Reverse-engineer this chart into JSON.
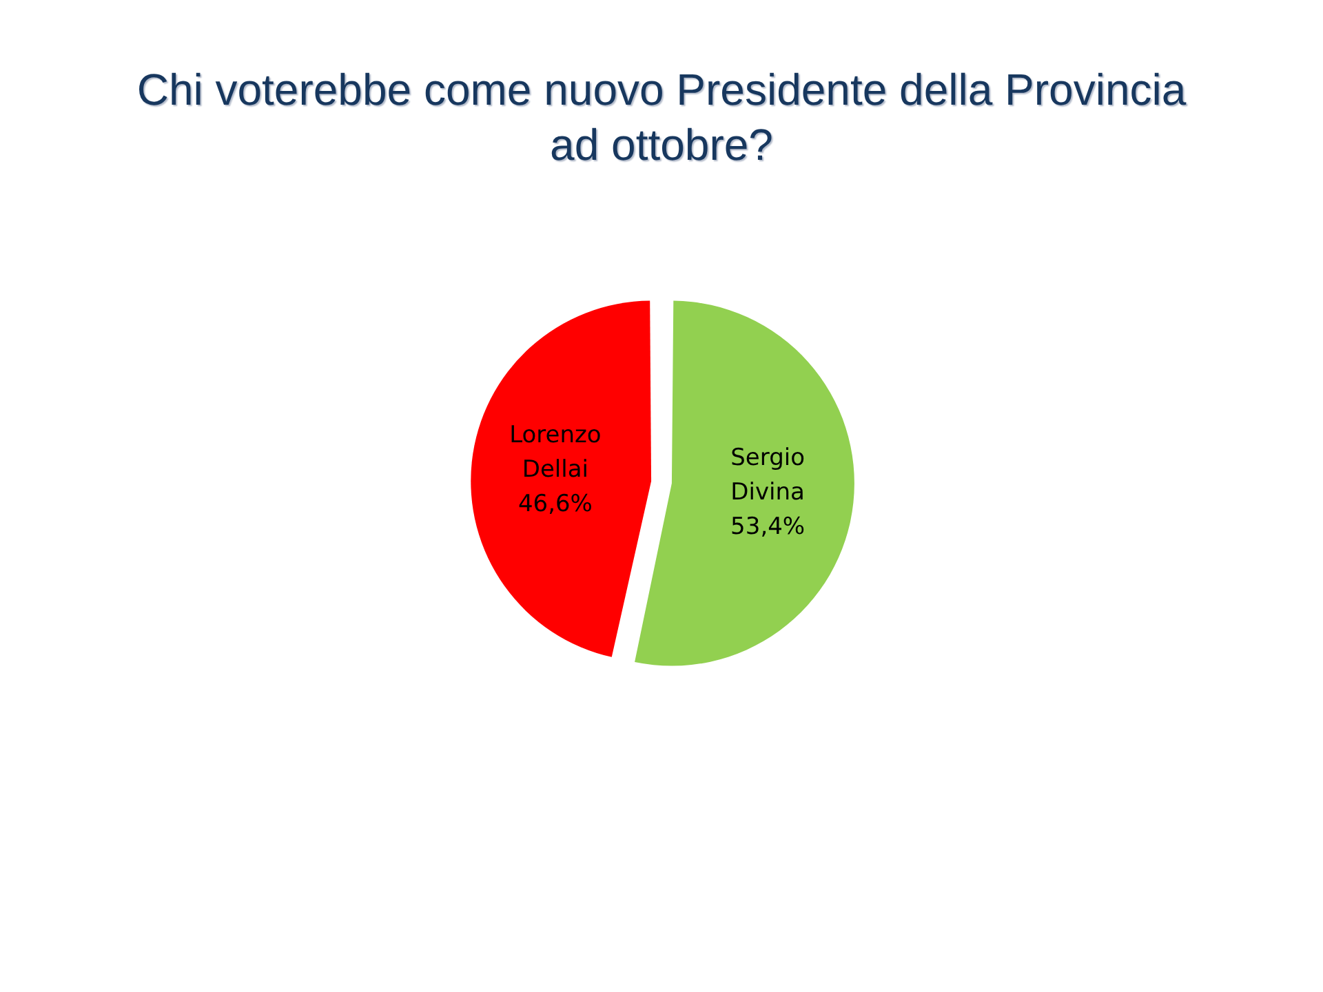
{
  "chart_data": {
    "type": "pie",
    "title": "Chi voterebbe come nuovo Presidente della Provincia ad ottobre?",
    "categories": [
      "Sergio Divina",
      "Lorenzo Dellai"
    ],
    "values": [
      53.4,
      46.6
    ],
    "colors": [
      "#92d050",
      "#ff0000"
    ],
    "value_labels": [
      "53,4%",
      "46,6%"
    ]
  }
}
